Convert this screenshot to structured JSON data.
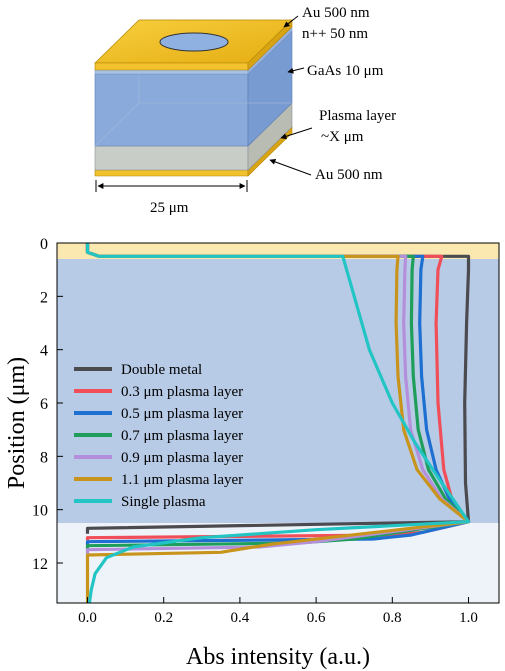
{
  "diagram": {
    "labels": {
      "top_gold": "Au 500 nm",
      "contact": "n++ 50 nm",
      "active": "GaAs 10 μm",
      "plasma": "Plasma layer",
      "plasma_thickness": "~X μm",
      "bottom_gold": "Au 500 nm",
      "width": "25 μm"
    }
  },
  "chart_data": {
    "type": "line",
    "xlabel": "Abs intensity (a.u.)",
    "ylabel": "Position (μm)",
    "xlim": [
      -0.08,
      1.08
    ],
    "ylim": [
      0,
      13.5
    ],
    "y_inverted": true,
    "xticks": [
      0.0,
      0.2,
      0.4,
      0.6,
      0.8,
      1.0
    ],
    "xtick_labels": [
      "0.0",
      "0.2",
      "0.4",
      "0.6",
      "0.8",
      "1.0"
    ],
    "yticks": [
      0,
      2,
      4,
      6,
      8,
      10,
      12
    ],
    "ytick_labels": [
      "0",
      "2",
      "4",
      "6",
      "8",
      "10",
      "12"
    ],
    "regions": [
      {
        "from": 0,
        "to": 0.6,
        "color": "#fbe8b0"
      },
      {
        "from": 0.6,
        "to": 10.5,
        "color": "#b7cbe6"
      },
      {
        "from": 10.5,
        "to": 13.5,
        "color": "#eef3fa"
      }
    ],
    "legend_position": "lower-left",
    "series": [
      {
        "name": "Double metal",
        "color": "#4a4a4f",
        "points": [
          [
            0.0,
            0.0
          ],
          [
            0.0,
            0.35
          ],
          [
            0.03,
            0.5
          ],
          [
            1.0,
            0.5
          ],
          [
            1.0,
            1.0
          ],
          [
            0.995,
            3.0
          ],
          [
            0.99,
            6.0
          ],
          [
            0.992,
            9.0
          ],
          [
            1.0,
            10.45
          ],
          [
            0.0,
            10.7
          ],
          [
            0.0,
            10.9
          ]
        ]
      },
      {
        "name": "0.3 μm plasma layer",
        "color": "#f04f5a",
        "points": [
          [
            0.0,
            0.0
          ],
          [
            0.0,
            0.35
          ],
          [
            0.03,
            0.5
          ],
          [
            0.93,
            0.5
          ],
          [
            0.92,
            1.0
          ],
          [
            0.915,
            3.0
          ],
          [
            0.92,
            6.0
          ],
          [
            0.935,
            8.5
          ],
          [
            0.96,
            9.8
          ],
          [
            1.0,
            10.45
          ],
          [
            0.88,
            10.85
          ],
          [
            0.8,
            10.95
          ],
          [
            0.0,
            11.05
          ],
          [
            0.0,
            11.15
          ]
        ]
      },
      {
        "name": "0.5 μm plasma layer",
        "color": "#1d6fd1",
        "points": [
          [
            0.0,
            0.0
          ],
          [
            0.0,
            0.35
          ],
          [
            0.03,
            0.5
          ],
          [
            0.88,
            0.5
          ],
          [
            0.875,
            1.0
          ],
          [
            0.872,
            3.0
          ],
          [
            0.877,
            5.0
          ],
          [
            0.89,
            7.0
          ],
          [
            0.915,
            8.5
          ],
          [
            0.95,
            9.6
          ],
          [
            1.0,
            10.45
          ],
          [
            0.85,
            10.95
          ],
          [
            0.75,
            11.1
          ],
          [
            0.0,
            11.2
          ],
          [
            0.0,
            11.35
          ]
        ]
      },
      {
        "name": "0.7 μm plasma layer",
        "color": "#1e9e5a",
        "points": [
          [
            0.0,
            0.0
          ],
          [
            0.0,
            0.35
          ],
          [
            0.03,
            0.5
          ],
          [
            0.855,
            0.5
          ],
          [
            0.852,
            1.0
          ],
          [
            0.85,
            3.0
          ],
          [
            0.855,
            5.0
          ],
          [
            0.868,
            7.0
          ],
          [
            0.895,
            8.5
          ],
          [
            0.94,
            9.6
          ],
          [
            1.0,
            10.45
          ],
          [
            0.7,
            11.1
          ],
          [
            0.55,
            11.25
          ],
          [
            0.0,
            11.35
          ],
          [
            0.0,
            11.5
          ]
        ]
      },
      {
        "name": "0.9 μm plasma layer",
        "color": "#b48fdc",
        "points": [
          [
            0.0,
            0.0
          ],
          [
            0.0,
            0.35
          ],
          [
            0.03,
            0.5
          ],
          [
            0.835,
            0.5
          ],
          [
            0.833,
            1.0
          ],
          [
            0.83,
            3.0
          ],
          [
            0.835,
            5.0
          ],
          [
            0.848,
            7.0
          ],
          [
            0.88,
            8.5
          ],
          [
            0.93,
            9.6
          ],
          [
            1.0,
            10.45
          ],
          [
            0.6,
            11.2
          ],
          [
            0.45,
            11.4
          ],
          [
            0.0,
            11.5
          ],
          [
            0.0,
            11.65
          ]
        ]
      },
      {
        "name": "1.1 μm plasma layer",
        "color": "#c9941c",
        "points": [
          [
            0.0,
            0.0
          ],
          [
            0.0,
            0.35
          ],
          [
            0.03,
            0.5
          ],
          [
            0.815,
            0.5
          ],
          [
            0.812,
            1.0
          ],
          [
            0.81,
            3.0
          ],
          [
            0.815,
            5.0
          ],
          [
            0.83,
            7.0
          ],
          [
            0.865,
            8.5
          ],
          [
            0.925,
            9.6
          ],
          [
            1.0,
            10.45
          ],
          [
            0.48,
            11.3
          ],
          [
            0.35,
            11.6
          ],
          [
            0.0,
            11.7
          ],
          [
            0.0,
            13.5
          ]
        ]
      },
      {
        "name": "Single plasma",
        "color": "#22c4c4",
        "points": [
          [
            0.0,
            0.0
          ],
          [
            0.0,
            0.35
          ],
          [
            0.03,
            0.5
          ],
          [
            0.67,
            0.5
          ],
          [
            0.7,
            2.0
          ],
          [
            0.74,
            4.0
          ],
          [
            0.8,
            6.0
          ],
          [
            0.86,
            7.5
          ],
          [
            0.93,
            9.0
          ],
          [
            1.0,
            10.45
          ],
          [
            0.6,
            10.75
          ],
          [
            0.3,
            11.05
          ],
          [
            0.12,
            11.4
          ],
          [
            0.05,
            11.8
          ],
          [
            0.02,
            12.4
          ],
          [
            0.01,
            13.0
          ],
          [
            0.005,
            13.5
          ]
        ]
      }
    ]
  }
}
